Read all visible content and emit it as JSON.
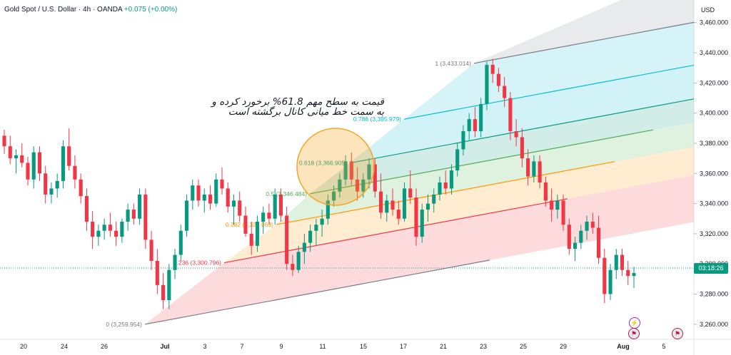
{
  "header": {
    "symbol_title": "Gold Spot / U.S. Dollar · 4h · OANDA",
    "change_text": "+0.075 (+0.00%)"
  },
  "axis": {
    "currency": "USD",
    "current_price_label": "03:18:26",
    "price_ticks": [
      "3,460.000",
      "3,440.000",
      "3,420.000",
      "3,400.000",
      "3,380.000",
      "3,360.000",
      "3,340.000",
      "3,320.000",
      "3,300.000",
      "3,280.000",
      "3,260.000"
    ],
    "time_ticks": [
      "20",
      "24",
      "26",
      "Jul",
      "3",
      "7",
      "9",
      "11",
      "15",
      "17",
      "21",
      "23",
      "25",
      "29",
      "Aug",
      "5"
    ]
  },
  "annotation": {
    "line1": "قیمت به سطح مهم 61.8%  برخورد کرده و",
    "line2": "به سمت خط میانی کانال برگشته است"
  },
  "colors": {
    "up": "#089981",
    "down": "#f23645",
    "circle": "#f5a623"
  },
  "events": {
    "bolt_icon": "lightning-event-icon",
    "flag_icon": "us-flag-event-icon"
  },
  "chart_data": {
    "type": "candlestick",
    "symbol": "Gold Spot / U.S. Dollar",
    "timeframe": "4h",
    "ylim": [
      3250,
      3475
    ],
    "fib_channel": [
      {
        "level": "0",
        "label": "0 (3,259.954)",
        "color": "#787b86"
      },
      {
        "level": "0.236",
        "label": "0.236 (3,300.796)",
        "color": "#f23645"
      },
      {
        "level": "0.382",
        "label": "0.382 (3,326.063)",
        "color": "#ff9800"
      },
      {
        "level": "0.5",
        "label": "0.5 (3,346.484)",
        "color": "#4caf50"
      },
      {
        "level": "0.618",
        "label": "0.618 (3,366.905)",
        "color": "#089981"
      },
      {
        "level": "0.786",
        "label": "0.786 (3,395.979)",
        "color": "#00bcd4"
      },
      {
        "level": "1",
        "label": "1 (3,433.014)",
        "color": "#787b86"
      }
    ],
    "candles": [
      [
        3385,
        3389,
        3373,
        3378
      ],
      [
        3378,
        3385,
        3366,
        3370
      ],
      [
        3370,
        3376,
        3360,
        3372
      ],
      [
        3372,
        3380,
        3364,
        3367
      ],
      [
        3367,
        3371,
        3352,
        3356
      ],
      [
        3356,
        3378,
        3350,
        3374
      ],
      [
        3374,
        3378,
        3355,
        3360
      ],
      [
        3360,
        3365,
        3340,
        3346
      ],
      [
        3346,
        3354,
        3340,
        3350
      ],
      [
        3350,
        3360,
        3344,
        3355
      ],
      [
        3355,
        3382,
        3350,
        3378
      ],
      [
        3378,
        3390,
        3362,
        3365
      ],
      [
        3365,
        3372,
        3350,
        3356
      ],
      [
        3356,
        3360,
        3340,
        3345
      ],
      [
        3345,
        3350,
        3322,
        3328
      ],
      [
        3328,
        3335,
        3310,
        3318
      ],
      [
        3318,
        3326,
        3312,
        3322
      ],
      [
        3322,
        3330,
        3316,
        3326
      ],
      [
        3326,
        3334,
        3318,
        3322
      ],
      [
        3322,
        3328,
        3312,
        3318
      ],
      [
        3318,
        3330,
        3314,
        3328
      ],
      [
        3328,
        3340,
        3322,
        3336
      ],
      [
        3336,
        3340,
        3326,
        3330
      ],
      [
        3330,
        3350,
        3326,
        3346
      ],
      [
        3346,
        3350,
        3310,
        3316
      ],
      [
        3316,
        3322,
        3296,
        3302
      ],
      [
        3302,
        3310,
        3280,
        3286
      ],
      [
        3286,
        3294,
        3270,
        3276
      ],
      [
        3276,
        3300,
        3270,
        3296
      ],
      [
        3296,
        3310,
        3290,
        3306
      ],
      [
        3306,
        3326,
        3302,
        3322
      ],
      [
        3322,
        3346,
        3318,
        3342
      ],
      [
        3342,
        3356,
        3336,
        3352
      ],
      [
        3352,
        3356,
        3338,
        3342
      ],
      [
        3342,
        3350,
        3334,
        3346
      ],
      [
        3346,
        3352,
        3336,
        3340
      ],
      [
        3340,
        3360,
        3338,
        3356
      ],
      [
        3356,
        3364,
        3346,
        3350
      ],
      [
        3350,
        3354,
        3334,
        3338
      ],
      [
        3338,
        3346,
        3326,
        3342
      ],
      [
        3342,
        3348,
        3328,
        3332
      ],
      [
        3332,
        3338,
        3318,
        3320
      ],
      [
        3320,
        3328,
        3306,
        3312
      ],
      [
        3312,
        3332,
        3308,
        3328
      ],
      [
        3328,
        3338,
        3320,
        3334
      ],
      [
        3334,
        3340,
        3326,
        3330
      ],
      [
        3330,
        3350,
        3326,
        3346
      ],
      [
        3346,
        3350,
        3328,
        3332
      ],
      [
        3332,
        3338,
        3296,
        3300
      ],
      [
        3300,
        3306,
        3292,
        3296
      ],
      [
        3296,
        3312,
        3294,
        3308
      ],
      [
        3308,
        3320,
        3300,
        3314
      ],
      [
        3314,
        3326,
        3308,
        3322
      ],
      [
        3322,
        3330,
        3312,
        3326
      ],
      [
        3326,
        3336,
        3318,
        3330
      ],
      [
        3330,
        3346,
        3326,
        3342
      ],
      [
        3342,
        3352,
        3338,
        3348
      ],
      [
        3348,
        3360,
        3344,
        3356
      ],
      [
        3356,
        3372,
        3352,
        3368
      ],
      [
        3368,
        3374,
        3352,
        3356
      ],
      [
        3356,
        3364,
        3342,
        3348
      ],
      [
        3348,
        3360,
        3344,
        3356
      ],
      [
        3356,
        3370,
        3350,
        3366
      ],
      [
        3366,
        3370,
        3344,
        3348
      ],
      [
        3348,
        3360,
        3330,
        3334
      ],
      [
        3334,
        3346,
        3328,
        3342
      ],
      [
        3342,
        3350,
        3332,
        3336
      ],
      [
        3336,
        3342,
        3326,
        3330
      ],
      [
        3330,
        3354,
        3328,
        3350
      ],
      [
        3350,
        3362,
        3340,
        3344
      ],
      [
        3344,
        3350,
        3312,
        3318
      ],
      [
        3318,
        3340,
        3314,
        3336
      ],
      [
        3336,
        3346,
        3328,
        3340
      ],
      [
        3340,
        3350,
        3334,
        3346
      ],
      [
        3346,
        3358,
        3342,
        3354
      ],
      [
        3354,
        3362,
        3346,
        3350
      ],
      [
        3350,
        3366,
        3346,
        3362
      ],
      [
        3362,
        3380,
        3358,
        3376
      ],
      [
        3376,
        3392,
        3372,
        3388
      ],
      [
        3388,
        3400,
        3382,
        3396
      ],
      [
        3396,
        3404,
        3384,
        3388
      ],
      [
        3388,
        3410,
        3384,
        3406
      ],
      [
        3406,
        3434,
        3402,
        3432
      ],
      [
        3432,
        3436,
        3420,
        3426
      ],
      [
        3426,
        3430,
        3414,
        3418
      ],
      [
        3418,
        3424,
        3404,
        3410
      ],
      [
        3410,
        3414,
        3382,
        3388
      ],
      [
        3388,
        3396,
        3378,
        3384
      ],
      [
        3384,
        3390,
        3364,
        3370
      ],
      [
        3370,
        3376,
        3352,
        3358
      ],
      [
        3358,
        3372,
        3354,
        3368
      ],
      [
        3368,
        3372,
        3350,
        3354
      ],
      [
        3354,
        3358,
        3338,
        3342
      ],
      [
        3342,
        3350,
        3328,
        3336
      ],
      [
        3336,
        3346,
        3330,
        3342
      ],
      [
        3342,
        3346,
        3322,
        3326
      ],
      [
        3326,
        3330,
        3306,
        3310
      ],
      [
        3310,
        3318,
        3302,
        3314
      ],
      [
        3314,
        3326,
        3310,
        3322
      ],
      [
        3322,
        3332,
        3316,
        3328
      ],
      [
        3328,
        3334,
        3320,
        3324
      ],
      [
        3324,
        3332,
        3300,
        3304
      ],
      [
        3304,
        3310,
        3274,
        3280
      ],
      [
        3280,
        3300,
        3276,
        3296
      ],
      [
        3296,
        3310,
        3290,
        3306
      ],
      [
        3306,
        3310,
        3292,
        3296
      ],
      [
        3296,
        3302,
        3286,
        3292
      ],
      [
        3292,
        3298,
        3284,
        3294
      ]
    ]
  }
}
